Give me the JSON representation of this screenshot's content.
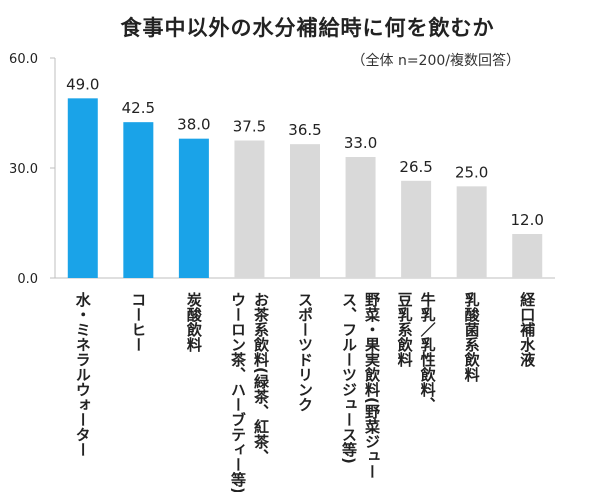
{
  "chart_data": {
    "type": "bar",
    "title": "食事中以外の水分補給時に何を飲むか",
    "subtitle": "（全体 n=200/複数回答）",
    "categories": [
      "水・ミネラルウォーター",
      "コーヒー",
      "炭酸飲料",
      "お茶系飲料(緑茶、紅茶、ウーロン茶、ハーブティー等)",
      "スポーツドリンク",
      "野菜・果実飲料(野菜ジュース、フルーツジュース等)",
      "牛乳／乳性飲料、豆乳系飲料",
      "乳酸菌系飲料",
      "経口補水液"
    ],
    "category_lines": [
      [
        "水・ミネラルウォーター"
      ],
      [
        "コーヒー"
      ],
      [
        "炭酸飲料"
      ],
      [
        "お茶系飲料(緑茶、紅茶、",
        "ウーロン茶、ハーブティー等)"
      ],
      [
        "スポーツドリンク"
      ],
      [
        "野菜・果実飲料(野菜ジュー",
        "ス、フルーツジュース等)"
      ],
      [
        "牛乳／乳性飲料、",
        "豆乳系飲料"
      ],
      [
        "乳酸菌系飲料"
      ],
      [
        "経口補水液"
      ]
    ],
    "values": [
      49.0,
      42.5,
      38.0,
      37.5,
      36.5,
      33.0,
      26.5,
      25.0,
      12.0
    ],
    "value_labels": [
      "49.0",
      "42.5",
      "38.0",
      "37.5",
      "36.5",
      "33.0",
      "26.5",
      "25.0",
      "12.0"
    ],
    "highlight_count": 3,
    "ylim": [
      0,
      60
    ],
    "yticks": [
      0,
      30,
      60
    ],
    "ytick_labels": [
      "0.0",
      "30.0",
      "60.0"
    ],
    "grid": false,
    "colors": {
      "highlight": "#1aa3e8",
      "normal": "#d9d9d9",
      "axis": "#bfbfbf",
      "text": "#222222"
    }
  }
}
